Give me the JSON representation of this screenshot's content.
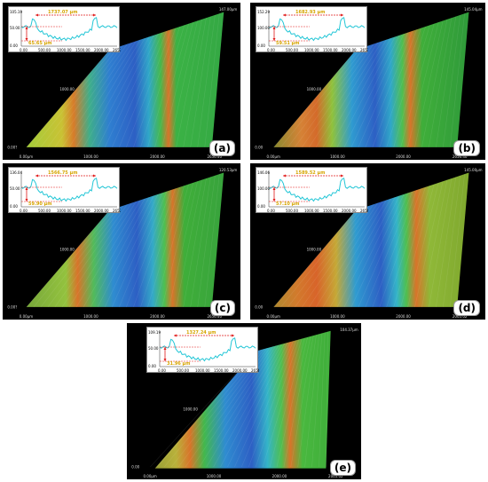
{
  "panels": [
    {
      "id": "a",
      "label": "(a)",
      "width_meas": "1737.07 µm",
      "depth_meas": "65.65 µm",
      "y_top": "105.19",
      "y_mid": "50.00",
      "y_zero": "0.00",
      "x_ticks": [
        "0.00",
        "500.00",
        "1000.00",
        "1500.00",
        "2000.00",
        "2657.76"
      ],
      "axis_top_right": "147.00µm",
      "axis_mid": "1000.00",
      "axis_base": "0.00µm",
      "axis_left": "0.00?",
      "axis_bottom1": "1000.00",
      "axis_bottom2": "2000.00",
      "axis_bottom3": "2656.40"
    },
    {
      "id": "b",
      "label": "(b)",
      "width_meas": "1682.93 µm",
      "depth_meas": "59.51 µm",
      "y_top": "152.29",
      "y_mid": "100.00",
      "y_zero": "0.00",
      "x_ticks": [
        "0.00",
        "500.00",
        "1000.00",
        "1500.00",
        "2000.00",
        "2657.76"
      ],
      "axis_top_right": "145.04µm",
      "axis_mid": "1000.00",
      "axis_base": "0.00µm",
      "axis_left": "0.00",
      "axis_bottom1": "1000.00",
      "axis_bottom2": "2000.00",
      "axis_bottom3": "2656.40"
    },
    {
      "id": "c",
      "label": "(c)",
      "width_meas": "1566.75 µm",
      "depth_meas": "59.90 µm",
      "y_top": "136.04",
      "y_mid": "50.00",
      "y_zero": "0.00",
      "x_ticks": [
        "0.00",
        "500.00",
        "1000.00",
        "1500.00",
        "2000.00",
        "2657.76"
      ],
      "axis_top_right": "120.53µm",
      "axis_mid": "1000.00",
      "axis_base": "0.00µm",
      "axis_left": "0.00?",
      "axis_bottom1": "1000.00",
      "axis_bottom2": "2000.00",
      "axis_bottom3": "2656.40"
    },
    {
      "id": "d",
      "label": "(d)",
      "width_meas": "1589.52 µm",
      "depth_meas": "57.10 µm",
      "y_top": "146.06",
      "y_mid": "100.00",
      "y_zero": "0.00",
      "x_ticks": [
        "0.00",
        "500.00",
        "1000.00",
        "1500.00",
        "2000.00",
        "2656.40"
      ],
      "axis_top_right": "145.00µm",
      "axis_mid": "1000.00",
      "axis_base": "0.00µm",
      "axis_left": "0.00",
      "axis_bottom1": "1000.00",
      "axis_bottom2": "2000.00",
      "axis_bottom3": "2005.02"
    },
    {
      "id": "e",
      "label": "(e)",
      "width_meas": "1327.24 µm",
      "depth_meas": "31.96 µm",
      "y_top": "109.19",
      "y_mid": "50.00",
      "y_zero": "0.00",
      "x_ticks": [
        "0.00",
        "500.00",
        "1000.00",
        "1500.00",
        "2000.00",
        "2656.40"
      ],
      "axis_top_right": "104.37µm",
      "axis_mid": "1000.00",
      "axis_base": "0.00µm",
      "axis_left": "0.00",
      "axis_bottom1": "1000.00",
      "axis_bottom2": "2000.00",
      "axis_bottom3": "2005.02"
    }
  ],
  "colors": {
    "plate_green": "#3fae3a",
    "groove_blue": "#2f63c8",
    "edge_orange": "#d8742a",
    "profile_cyan": "#22c6d6",
    "marker_red": "#e01818"
  }
}
